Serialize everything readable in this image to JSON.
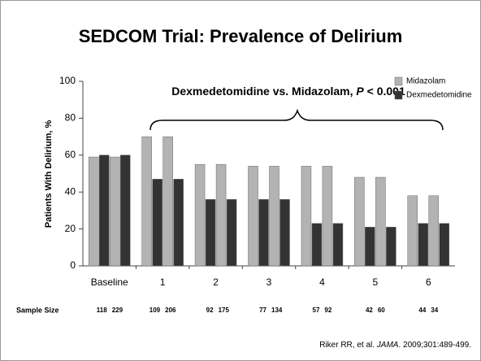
{
  "chart_data": {
    "type": "bar",
    "title": "SEDCOM Trial: Prevalence of Delirium",
    "y_label": "Patients With Delirium, %",
    "categories": [
      "Baseline",
      "1",
      "2",
      "3",
      "4",
      "5",
      "6"
    ],
    "series": [
      {
        "name": "Midazolam",
        "color": "#b3b3b3",
        "values": [
          59,
          70,
          55,
          54,
          54,
          48,
          38
        ]
      },
      {
        "name": "Dexmedetomidine",
        "color": "#333333",
        "values": [
          60,
          47,
          36,
          36,
          23,
          21,
          23
        ]
      }
    ],
    "ylim": [
      0,
      100
    ],
    "yticks": [
      0,
      20,
      40,
      60,
      80,
      100
    ],
    "legend": "top-right",
    "annotation": [
      "Dexmedetomidine vs. Midazolam, ",
      "P",
      " < 0.001"
    ],
    "sample_size_label": "Sample Size",
    "sample_sizes": [
      [
        118,
        229
      ],
      [
        109,
        206
      ],
      [
        92,
        175
      ],
      [
        77,
        134
      ],
      [
        57,
        92
      ],
      [
        42,
        60
      ],
      [
        44,
        34
      ]
    ],
    "citation": [
      "Riker RR, et al. ",
      "JAMA",
      ". 2009;301:489-499."
    ]
  }
}
